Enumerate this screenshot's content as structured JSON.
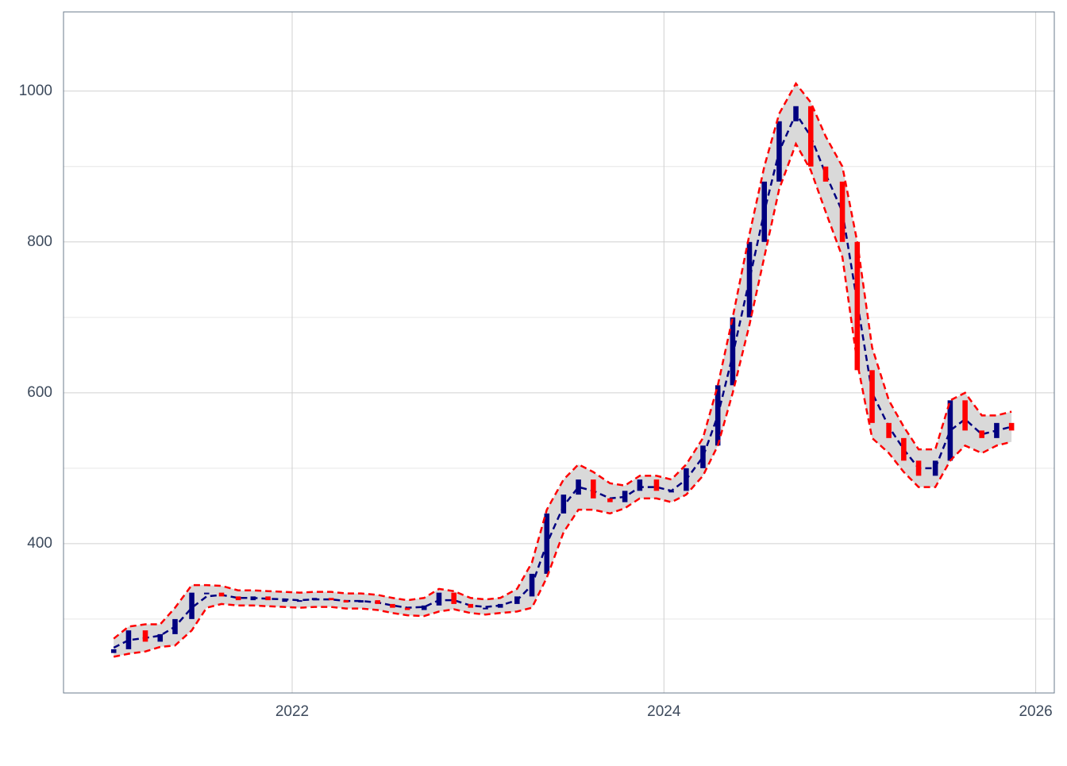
{
  "chart_data": {
    "type": "candlestick-bands",
    "x": [
      2021.04,
      2021.12,
      2021.21,
      2021.29,
      2021.37,
      2021.46,
      2021.54,
      2021.62,
      2021.71,
      2021.79,
      2021.87,
      2021.96,
      2022.04,
      2022.12,
      2022.21,
      2022.29,
      2022.37,
      2022.46,
      2022.54,
      2022.62,
      2022.71,
      2022.79,
      2022.87,
      2022.96,
      2023.04,
      2023.12,
      2023.21,
      2023.29,
      2023.37,
      2023.46,
      2023.54,
      2023.62,
      2023.71,
      2023.79,
      2023.87,
      2023.96,
      2024.04,
      2024.12,
      2024.21,
      2024.29,
      2024.37,
      2024.46,
      2024.54,
      2024.62,
      2024.71,
      2024.79,
      2024.87,
      2024.96,
      2025.04,
      2025.12,
      2025.21,
      2025.29,
      2025.37,
      2025.46,
      2025.54,
      2025.62,
      2025.71,
      2025.79,
      2025.87
    ],
    "open": [
      255,
      260,
      285,
      270,
      280,
      300,
      335,
      335,
      330,
      325,
      330,
      325,
      325,
      325,
      328,
      325,
      322,
      325,
      320,
      315,
      312,
      318,
      335,
      320,
      315,
      315,
      320,
      330,
      360,
      440,
      465,
      485,
      460,
      455,
      470,
      485,
      470,
      470,
      500,
      530,
      610,
      700,
      800,
      880,
      960,
      980,
      900,
      880,
      800,
      630,
      560,
      540,
      510,
      490,
      510,
      590,
      550,
      540,
      560
    ],
    "close": [
      260,
      285,
      270,
      280,
      300,
      335,
      335,
      330,
      325,
      330,
      325,
      325,
      325,
      328,
      325,
      322,
      325,
      320,
      315,
      312,
      318,
      335,
      320,
      315,
      315,
      320,
      330,
      360,
      440,
      465,
      485,
      460,
      455,
      470,
      485,
      470,
      470,
      500,
      530,
      610,
      700,
      800,
      880,
      960,
      980,
      900,
      880,
      800,
      630,
      560,
      540,
      510,
      490,
      510,
      590,
      550,
      540,
      560,
      550
    ],
    "middle": [
      262,
      272,
      275,
      278,
      290,
      315,
      330,
      332,
      328,
      328,
      327,
      326,
      325,
      326,
      326,
      324,
      324,
      322,
      318,
      315,
      316,
      325,
      325,
      318,
      316,
      318,
      325,
      345,
      400,
      450,
      475,
      470,
      460,
      462,
      475,
      475,
      470,
      485,
      515,
      570,
      650,
      750,
      840,
      920,
      970,
      940,
      890,
      840,
      720,
      600,
      555,
      525,
      500,
      500,
      550,
      565,
      545,
      550,
      555
    ],
    "upper": [
      274,
      290,
      293,
      293,
      315,
      345,
      345,
      344,
      338,
      338,
      337,
      336,
      335,
      336,
      336,
      334,
      334,
      332,
      328,
      325,
      328,
      340,
      337,
      328,
      326,
      328,
      340,
      375,
      445,
      485,
      505,
      495,
      480,
      477,
      490,
      490,
      485,
      505,
      540,
      610,
      700,
      810,
      900,
      970,
      1010,
      985,
      940,
      900,
      800,
      660,
      590,
      555,
      525,
      525,
      590,
      600,
      570,
      570,
      575
    ],
    "lower": [
      250,
      254,
      257,
      263,
      265,
      285,
      315,
      320,
      318,
      318,
      317,
      316,
      315,
      316,
      316,
      314,
      314,
      312,
      308,
      305,
      304,
      310,
      313,
      308,
      306,
      308,
      310,
      315,
      355,
      415,
      445,
      445,
      440,
      447,
      460,
      460,
      455,
      465,
      490,
      530,
      600,
      690,
      780,
      870,
      930,
      895,
      840,
      780,
      640,
      540,
      520,
      495,
      475,
      475,
      510,
      530,
      520,
      530,
      535
    ],
    "up_color": "#000080",
    "down_color": "#ff0000",
    "band_color": "#ff0000",
    "middle_color": "#000080",
    "fill_color": "#d9d9d9",
    "xlim": [
      2020.77,
      2026.1
    ],
    "xticks": [
      2022,
      2024,
      2026
    ],
    "ylim": [
      202,
      1105
    ],
    "yticks": [
      400,
      600,
      800,
      1000
    ],
    "yminor": [
      300,
      500,
      700,
      900
    ],
    "grid": true
  }
}
